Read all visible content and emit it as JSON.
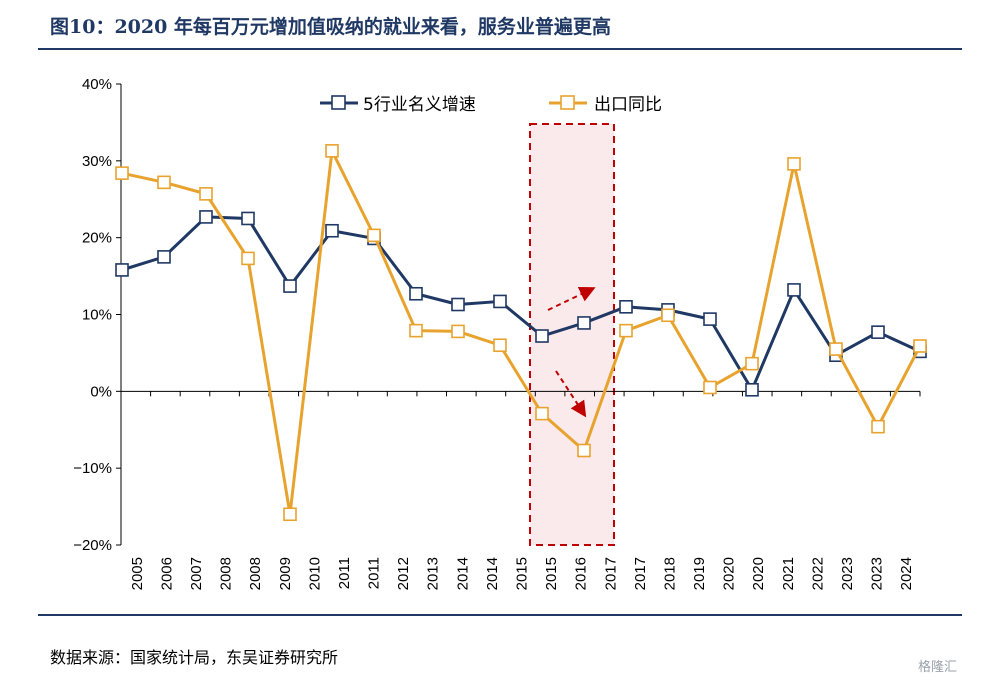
{
  "header": {
    "title": "图10：2020 年每百万元增加值吸纳的就业来看，服务业普遍更高"
  },
  "footer": {
    "source": "数据来源：国家统计局，东吴证券研究所",
    "watermark": "格隆汇"
  },
  "colors": {
    "navy": "#1f3864",
    "orange": "#e8a32e",
    "highlight_fill": "#fbeaec",
    "highlight_border": "#c00000",
    "rule": "#1f3864"
  },
  "chart_data": {
    "type": "line",
    "ylim": [
      -20,
      40
    ],
    "ytick_values": [
      -20,
      -10,
      0,
      10,
      20,
      30,
      40
    ],
    "ytick_labels": [
      "−20%",
      "−10%",
      "0%",
      "10%",
      "20%",
      "30%",
      "40%"
    ],
    "categories": [
      "2005",
      "2006",
      "2007",
      "2008",
      "2008",
      "2009",
      "2010",
      "2011",
      "2011",
      "2012",
      "2013",
      "2014",
      "2014",
      "2015",
      "2015",
      "2016",
      "2017",
      "2017",
      "2018",
      "2019",
      "2020",
      "2020",
      "2021",
      "2022",
      "2023",
      "2023",
      "2024"
    ],
    "series": [
      {
        "name": "5行业名义增速",
        "color": "#1f3864",
        "points": [
          [
            0,
            15.8
          ],
          [
            1,
            17.5
          ],
          [
            2,
            22.7
          ],
          [
            3,
            22.5
          ],
          [
            4,
            13.7
          ],
          [
            5,
            20.9
          ],
          [
            6,
            19.9
          ],
          [
            7,
            12.7
          ],
          [
            8,
            11.3
          ],
          [
            9,
            11.7
          ],
          [
            10,
            7.2
          ],
          [
            11,
            8.9
          ],
          [
            12,
            11.0
          ],
          [
            13,
            10.6
          ],
          [
            14,
            9.4
          ],
          [
            15,
            0.2
          ],
          [
            16,
            13.2
          ],
          [
            17,
            4.7
          ],
          [
            18,
            7.7
          ],
          [
            19,
            5.2
          ]
        ]
      },
      {
        "name": "出口同比",
        "color": "#e8a32e",
        "points": [
          [
            0,
            28.4
          ],
          [
            1,
            27.2
          ],
          [
            2,
            25.7
          ],
          [
            3,
            17.3
          ],
          [
            4,
            -16.0
          ],
          [
            5,
            31.3
          ],
          [
            6,
            20.3
          ],
          [
            7,
            7.9
          ],
          [
            8,
            7.8
          ],
          [
            9,
            6.0
          ],
          [
            10,
            -2.9
          ],
          [
            11,
            -7.7
          ],
          [
            12,
            7.9
          ],
          [
            13,
            9.9
          ],
          [
            14,
            0.5
          ],
          [
            15,
            3.6
          ],
          [
            16,
            29.6
          ],
          [
            17,
            5.5
          ],
          [
            18,
            -4.6
          ],
          [
            19,
            5.9
          ]
        ]
      }
    ],
    "highlight_range": [
      10,
      11
    ],
    "arrows": [
      "up-right",
      "down-right"
    ],
    "legend_position": "top-center",
    "grid": false
  }
}
